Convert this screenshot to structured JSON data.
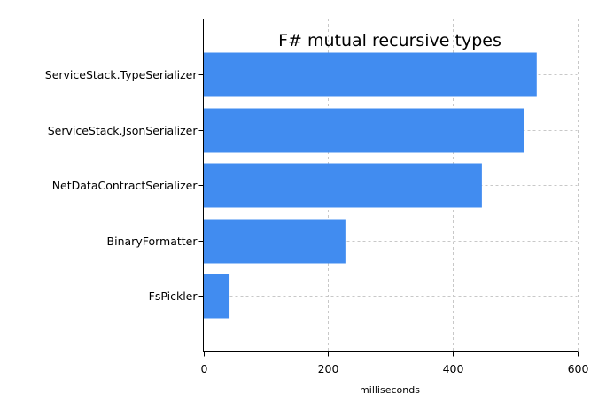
{
  "chart_data": {
    "type": "bar",
    "orientation": "horizontal",
    "title": "F# mutual recursive types",
    "xlabel": "milliseconds",
    "ylabel": "",
    "categories": [
      "ServiceStack.TypeSerializer",
      "ServiceStack.JsonSerializer",
      "NetDataContractSerializer",
      "BinaryFormatter",
      "FsPickler"
    ],
    "values": [
      535,
      515,
      447,
      228,
      42
    ],
    "xlim": [
      0,
      600
    ],
    "xticks": [
      0,
      200,
      400,
      600
    ],
    "grid": true,
    "grid_style": "dashed",
    "bar_color": "#418cf0",
    "legend": "none"
  }
}
